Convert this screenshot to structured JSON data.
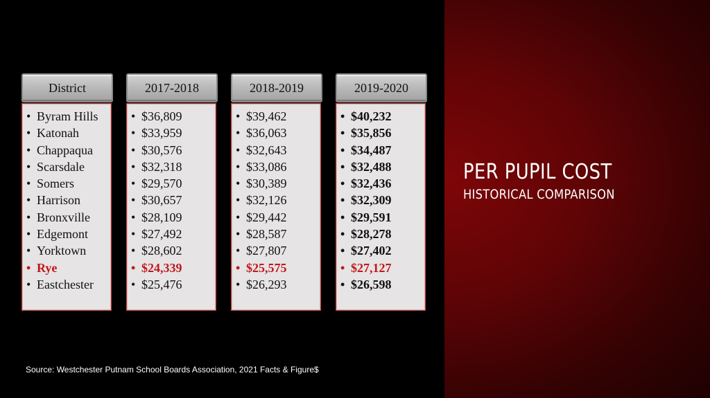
{
  "title": "PER PUPIL COST",
  "subtitle": "HISTORICAL COMPARISON",
  "source": "Source: Westchester Putnam School Boards Association,  2021 Facts & Figure$",
  "highlight_color": "#c0171c",
  "bullet": "•",
  "columns": [
    {
      "header": "District",
      "values": [
        "Byram Hills",
        "Katonah",
        "Chappaqua",
        "Scarsdale",
        "Somers",
        "Harrison",
        "Bronxville",
        "Edgemont",
        "Yorktown",
        "Rye",
        "Eastchester"
      ]
    },
    {
      "header": "2017-2018",
      "values": [
        "$36,809",
        "$33,959",
        "$30,576",
        "$32,318",
        "$29,570",
        "$30,657",
        "$28,109",
        "$27,492",
        "$28,602",
        "$24,339",
        "$25,476"
      ]
    },
    {
      "header": "2018-2019",
      "values": [
        "$39,462",
        "$36,063",
        "$32,643",
        "$33,086",
        "$30,389",
        "$32,126",
        "$29,442",
        "$28,587",
        "$27,807",
        "$25,575",
        "$26,293"
      ]
    },
    {
      "header": "2019-2020",
      "values": [
        "$40,232",
        "$35,856",
        "$34,487",
        "$32,488",
        "$32,436",
        "$32,309",
        "$29,591",
        "$28,278",
        "$27,402",
        "$27,127",
        "$26,598"
      ]
    }
  ],
  "highlight_row": 9
}
